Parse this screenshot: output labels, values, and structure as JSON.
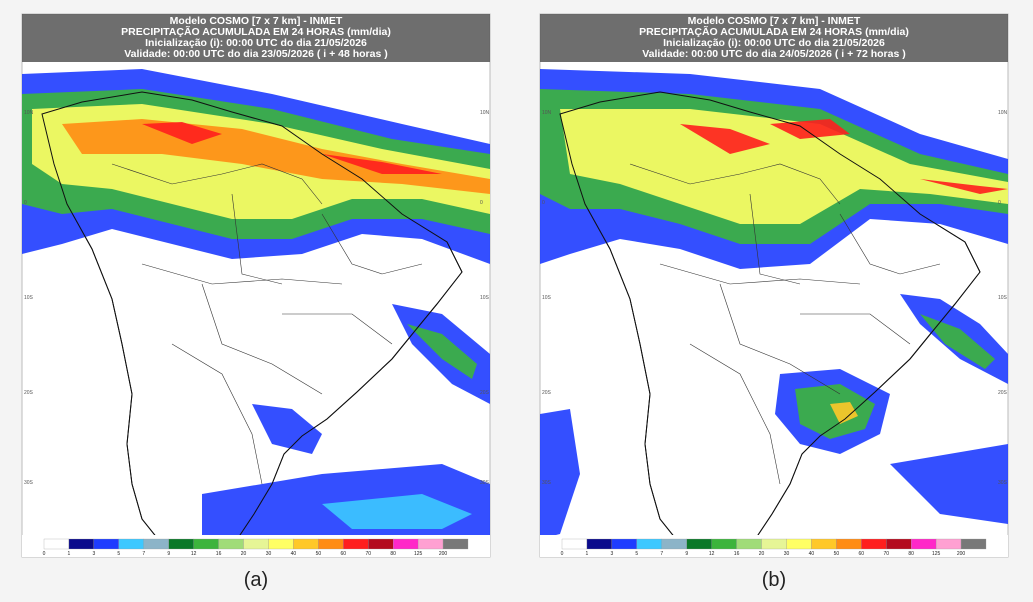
{
  "panels": [
    {
      "header": [
        "Modelo COSMO [7 x 7 km] - INMET",
        "PRECIPITAÇÃO ACUMULADA EM 24 HORAS (mm/dia)",
        "Inicialização (i): 00:00 UTC do dia 21/05/2026",
        "Validade: 00:00 UTC do dia 23/05/2026 ( i + 48 horas )"
      ],
      "caption": "(a)"
    },
    {
      "header": [
        "Modelo COSMO [7 x 7 km] - INMET",
        "PRECIPITAÇÃO ACUMULADA EM 24 HORAS (mm/dia)",
        "Inicialização (i): 00:00 UTC do dia 21/05/2026",
        "Validade: 00:00 UTC do dia 24/05/2026 ( i + 72 horas )"
      ],
      "caption": "(b)"
    }
  ],
  "latitude_labels": [
    "10N",
    "0",
    "10S",
    "20S",
    "30S"
  ],
  "colorbar": {
    "labels": [
      "0",
      "1",
      "3",
      "5",
      "7",
      "9",
      "12",
      "16",
      "20",
      "30",
      "40",
      "50",
      "60",
      "70",
      "80",
      "125",
      "200"
    ],
    "colors": [
      "#ffffff",
      "#0a0a8c",
      "#1e3cff",
      "#3cc8ff",
      "#8cb4c8",
      "#0a7828",
      "#3cb43c",
      "#a0dc78",
      "#e6f596",
      "#ffff64",
      "#ffc828",
      "#ff8c14",
      "#ff1e1e",
      "#b40a1e",
      "#ff28c8",
      "#ffa0d2",
      "#787878"
    ]
  }
}
